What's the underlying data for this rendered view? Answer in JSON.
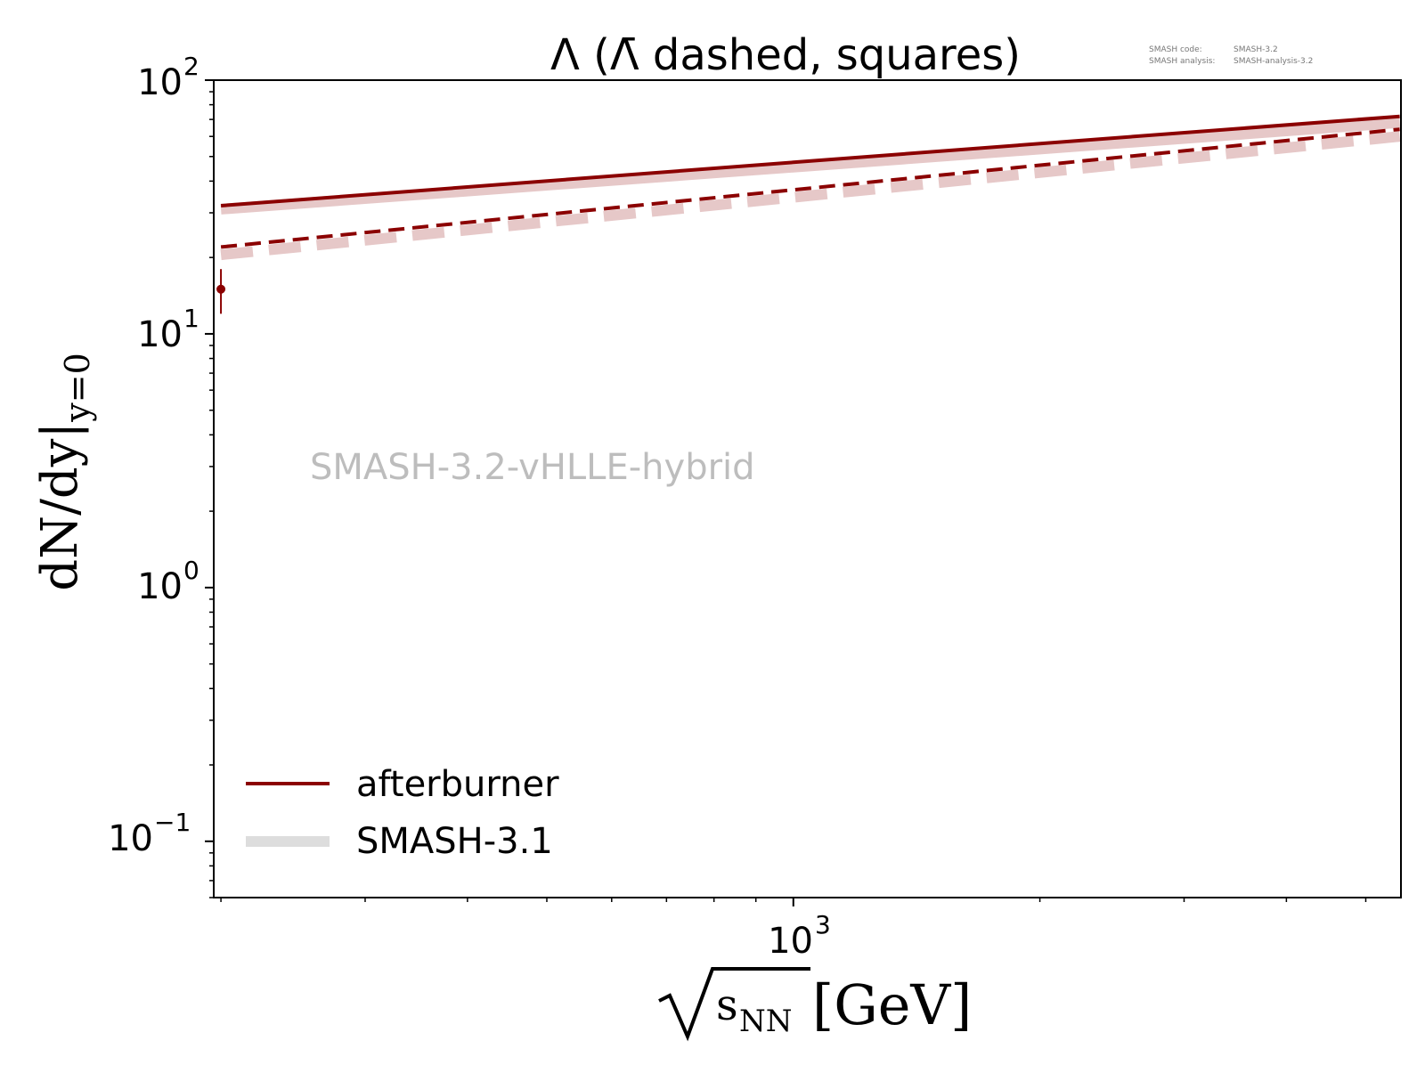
{
  "chart_data": {
    "type": "line",
    "title": "Λ (Λ̄ dashed, squares)",
    "xlabel": "√s_NN [GeV]",
    "xlabel_radicand": "s",
    "xlabel_sub": "NN",
    "xlabel_unit": "[GeV]",
    "ylabel_main": "dN/dy|",
    "ylabel_sub": "y=0",
    "xscale": "log",
    "yscale": "log",
    "xlim": [
      196,
      5520
    ],
    "ylim": [
      0.06,
      100
    ],
    "xtick_base": "10",
    "xtick_exp": "3",
    "xticks": [
      1000
    ],
    "yticks": [
      {
        "value": 100,
        "base": "10",
        "exp": "2"
      },
      {
        "value": 10,
        "base": "10",
        "exp": "1"
      },
      {
        "value": 1,
        "base": "10",
        "exp": "0"
      },
      {
        "value": 0.1,
        "base": "10",
        "exp": "−1"
      }
    ],
    "grid": false,
    "legend_position": "lower-left",
    "series": [
      {
        "name": "afterburner",
        "style": "solid",
        "color": "#8b0000",
        "x": [
          200,
          5500
        ],
        "y": [
          32,
          72
        ]
      },
      {
        "name": "SMASH-3.1",
        "style": "solid",
        "color": "#e6c8c8",
        "x": [
          200,
          5500
        ],
        "y": [
          31,
          68
        ]
      },
      {
        "style": "dashed",
        "color": "#8b0000",
        "x": [
          200,
          5500
        ],
        "y": [
          22,
          64
        ]
      },
      {
        "style": "dashed",
        "color": "#e6c8c8",
        "x": [
          200,
          5500
        ],
        "y": [
          20.5,
          60
        ]
      }
    ],
    "data_points": [
      {
        "x": 200,
        "y": 15,
        "yerr_low": 12,
        "yerr_high": 18,
        "color": "#8b0000"
      }
    ],
    "legend": [
      {
        "label": "afterburner",
        "color": "#8b0000"
      },
      {
        "label": "SMASH-3.1",
        "color": "#dddddd"
      }
    ],
    "watermark": "SMASH-3.2-vHLLE-hybrid",
    "version_info": {
      "code_label": "SMASH code:",
      "code_value": "SMASH-3.2",
      "analysis_label": "SMASH analysis:",
      "analysis_value": "SMASH-analysis-3.2"
    }
  }
}
